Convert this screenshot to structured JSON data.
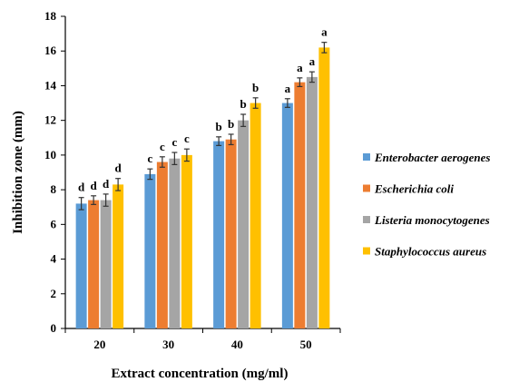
{
  "chart_data": {
    "type": "bar",
    "xlabel": "Extract concentration (mg/ml)",
    "ylabel": "Inhibition zone (mm)",
    "ylim": [
      0,
      18
    ],
    "yticks": [
      "0",
      "2",
      "4",
      "6",
      "8",
      "10",
      "12",
      "14",
      "16",
      "18"
    ],
    "categories": [
      "20",
      "30",
      "40",
      "50"
    ],
    "legend_position": "right",
    "grid": false,
    "series": [
      {
        "name": "Enterobacter aerogenes",
        "color": "#5B9BD5",
        "values": [
          7.2,
          8.9,
          10.8,
          13.0
        ],
        "errors": [
          0.35,
          0.3,
          0.25,
          0.25
        ],
        "labels": [
          "d",
          "c",
          "b",
          "a"
        ]
      },
      {
        "name": "Escherichia coli",
        "color": "#ED7D31",
        "values": [
          7.4,
          9.6,
          10.9,
          14.2
        ],
        "errors": [
          0.25,
          0.3,
          0.3,
          0.25
        ],
        "labels": [
          "d",
          "c",
          "b",
          "a"
        ]
      },
      {
        "name": "Listeria monocytogenes",
        "color": "#A5A5A5",
        "values": [
          7.4,
          9.8,
          12.0,
          14.5
        ],
        "errors": [
          0.35,
          0.35,
          0.35,
          0.3
        ],
        "labels": [
          "d",
          "c",
          "b",
          "a"
        ]
      },
      {
        "name": "Staphylococcus aureus",
        "color": "#FFC000",
        "values": [
          8.3,
          10.0,
          13.0,
          16.2
        ],
        "errors": [
          0.35,
          0.35,
          0.3,
          0.3
        ],
        "labels": [
          "d",
          "c",
          "b",
          "a"
        ]
      }
    ]
  }
}
